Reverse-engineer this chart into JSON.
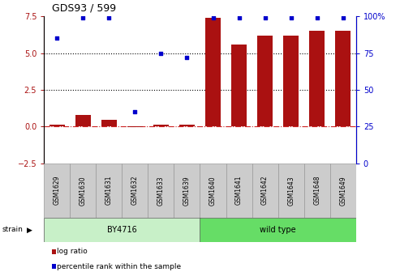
{
  "title": "GDS93 / 599",
  "samples": [
    "GSM1629",
    "GSM1630",
    "GSM1631",
    "GSM1632",
    "GSM1633",
    "GSM1639",
    "GSM1640",
    "GSM1641",
    "GSM1642",
    "GSM1643",
    "GSM1648",
    "GSM1649"
  ],
  "log_ratio": [
    0.15,
    0.8,
    0.45,
    -0.05,
    0.12,
    0.1,
    7.4,
    5.6,
    6.2,
    6.2,
    6.5,
    6.5
  ],
  "percentile_rank": [
    85,
    99,
    99,
    35,
    75,
    72,
    99,
    99,
    99,
    99,
    99,
    99
  ],
  "strain_groups": [
    {
      "label": "BY4716",
      "start": 0,
      "end": 6,
      "color": "#c8f0c8"
    },
    {
      "label": "wild type",
      "start": 6,
      "end": 12,
      "color": "#66dd66"
    }
  ],
  "bar_color": "#aa1111",
  "dot_color": "#0000cc",
  "ylim_left": [
    -2.5,
    7.5
  ],
  "ylim_right": [
    0,
    100
  ],
  "yticks_left": [
    -2.5,
    0.0,
    2.5,
    5.0,
    7.5
  ],
  "yticks_right": [
    0,
    25,
    50,
    75,
    100
  ],
  "hlines": [
    2.5,
    5.0
  ],
  "zero_line_color": "#cc2222",
  "background_color": "#ffffff",
  "grid_color": "#000000",
  "label_box_color": "#cccccc",
  "label_box_edge": "#999999",
  "legend": [
    {
      "label": "log ratio",
      "color": "#aa1111"
    },
    {
      "label": "percentile rank within the sample",
      "color": "#0000cc"
    }
  ]
}
